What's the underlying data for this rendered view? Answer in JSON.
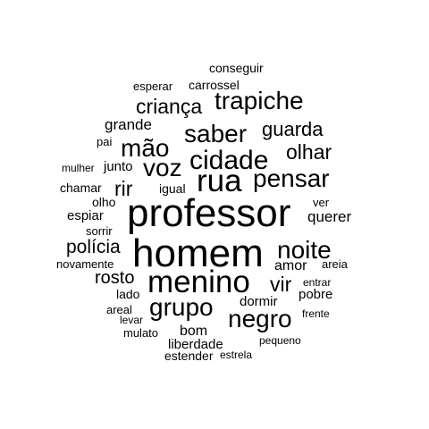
{
  "word_cloud": {
    "text_color": "#000000",
    "background": "#ffffff",
    "words": [
      {
        "text": "professor",
        "weight": 10
      },
      {
        "text": "homem",
        "weight": 10
      },
      {
        "text": "menino",
        "weight": 9
      },
      {
        "text": "rua",
        "weight": 8
      },
      {
        "text": "cidade",
        "weight": 7
      },
      {
        "text": "saber",
        "weight": 7
      },
      {
        "text": "pensar",
        "weight": 7
      },
      {
        "text": "trapiche",
        "weight": 6
      },
      {
        "text": "noite",
        "weight": 6
      },
      {
        "text": "grupo",
        "weight": 6
      },
      {
        "text": "negro",
        "weight": 6
      },
      {
        "text": "mão",
        "weight": 6
      },
      {
        "text": "voz",
        "weight": 6
      },
      {
        "text": "criança",
        "weight": 5
      },
      {
        "text": "guarda",
        "weight": 5
      },
      {
        "text": "olhar",
        "weight": 5
      },
      {
        "text": "rir",
        "weight": 5
      },
      {
        "text": "vir",
        "weight": 5
      },
      {
        "text": "polícia",
        "weight": 4
      },
      {
        "text": "rosto",
        "weight": 4
      },
      {
        "text": "grande",
        "weight": 3
      },
      {
        "text": "amor",
        "weight": 3
      },
      {
        "text": "espiar",
        "weight": 3
      },
      {
        "text": "querer",
        "weight": 3
      },
      {
        "text": "bom",
        "weight": 3
      },
      {
        "text": "liberdade",
        "weight": 3
      },
      {
        "text": "dormir",
        "weight": 3
      },
      {
        "text": "lado",
        "weight": 2
      },
      {
        "text": "pobre",
        "weight": 2
      },
      {
        "text": "junto",
        "weight": 2
      },
      {
        "text": "conseguir",
        "weight": 2
      },
      {
        "text": "carrossel",
        "weight": 2
      },
      {
        "text": "esperar",
        "weight": 2
      },
      {
        "text": "chamar",
        "weight": 2
      },
      {
        "text": "igual",
        "weight": 2
      },
      {
        "text": "olho",
        "weight": 2
      },
      {
        "text": "sorrir",
        "weight": 2
      },
      {
        "text": "novamente",
        "weight": 2
      },
      {
        "text": "areal",
        "weight": 2
      },
      {
        "text": "estender",
        "weight": 2
      },
      {
        "text": "mulato",
        "weight": 2
      },
      {
        "text": "pai",
        "weight": 2
      },
      {
        "text": "mulher",
        "weight": 2
      },
      {
        "text": "ver",
        "weight": 2
      },
      {
        "text": "areia",
        "weight": 2
      },
      {
        "text": "entrar",
        "weight": 2
      },
      {
        "text": "frente",
        "weight": 2
      },
      {
        "text": "levar",
        "weight": 2
      },
      {
        "text": "pequeno",
        "weight": 2
      },
      {
        "text": "estrela",
        "weight": 2
      }
    ]
  }
}
